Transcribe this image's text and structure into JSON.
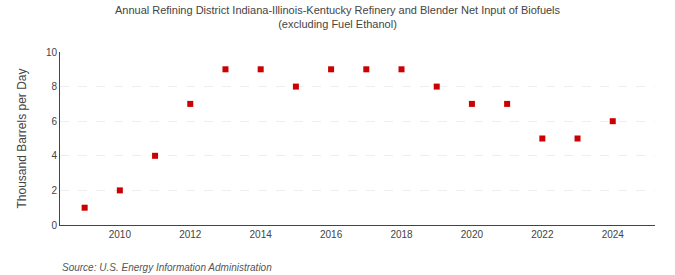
{
  "chart_data": {
    "type": "scatter",
    "title": "Annual Refining District Indiana-Illinois-Kentucky Refinery and Blender Net Input of Biofuels\n(excluding Fuel Ethanol)",
    "ylabel": "Thousand Barrels per Day",
    "annotations": [
      "Source: U.S. Energy Information Administration"
    ],
    "x": [
      2009,
      2010,
      2011,
      2012,
      2013,
      2014,
      2015,
      2016,
      2017,
      2018,
      2019,
      2020,
      2021,
      2022,
      2023,
      2024
    ],
    "values": [
      1,
      2,
      4,
      7,
      9,
      9,
      8,
      9,
      9,
      9,
      8,
      7,
      7,
      5,
      5,
      6
    ],
    "color": "#cc0000",
    "marker": "square",
    "xlim": [
      2008.3,
      2025.2
    ],
    "xticks": [
      2010,
      2012,
      2014,
      2016,
      2018,
      2020,
      2022,
      2024
    ],
    "ylim": [
      0,
      10
    ],
    "yticks": [
      0,
      2,
      4,
      6,
      8,
      10
    ],
    "grid": true
  }
}
